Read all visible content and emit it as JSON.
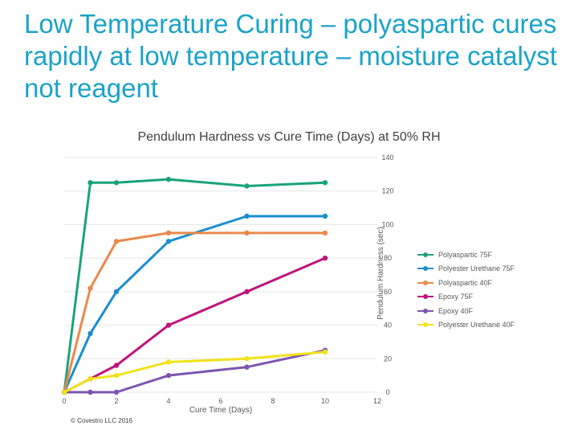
{
  "slide": {
    "title": "Low Temperature Curing – polyaspartic cures rapidly at low temperature – moisture catalyst not reagent",
    "copyright": "© Covestro LLC 2016"
  },
  "chart_data": {
    "type": "line",
    "title": "Pendulum Hardness vs Cure Time (Days) at 50% RH",
    "xlabel": "Cure Time (Days)",
    "ylabel": "Pendulum Hardness (sec)",
    "xlim": [
      0,
      12
    ],
    "ylim": [
      0,
      140
    ],
    "xticks": [
      0,
      2,
      4,
      6,
      8,
      10,
      12
    ],
    "yticks": [
      0,
      20,
      40,
      60,
      80,
      100,
      120,
      140
    ],
    "grid": true,
    "legend_position": "right",
    "series": [
      {
        "name": "Polyaspartic 75F",
        "color": "#1aa37a",
        "points": [
          [
            0,
            0
          ],
          [
            1,
            125
          ],
          [
            2,
            125
          ],
          [
            4,
            127
          ],
          [
            7,
            123
          ],
          [
            10,
            125
          ]
        ]
      },
      {
        "name": "Polyester Urethane 75F",
        "color": "#1a8fd0",
        "points": [
          [
            0,
            0
          ],
          [
            1,
            35
          ],
          [
            2,
            60
          ],
          [
            4,
            90
          ],
          [
            7,
            105
          ],
          [
            10,
            105
          ]
        ]
      },
      {
        "name": "Polyaspartic 40F",
        "color": "#e98a4c",
        "points": [
          [
            0,
            0
          ],
          [
            1,
            62
          ],
          [
            2,
            90
          ],
          [
            4,
            95
          ],
          [
            7,
            95
          ],
          [
            10,
            95
          ]
        ]
      },
      {
        "name": "Epoxy 75F",
        "color": "#c0137d",
        "points": [
          [
            0,
            0
          ],
          [
            1,
            8
          ],
          [
            2,
            16
          ],
          [
            4,
            40
          ],
          [
            7,
            60
          ],
          [
            10,
            80
          ]
        ]
      },
      {
        "name": "Epoxy 40F",
        "color": "#7e55b0",
        "points": [
          [
            0,
            0
          ],
          [
            1,
            0
          ],
          [
            2,
            0
          ],
          [
            4,
            10
          ],
          [
            7,
            15
          ],
          [
            10,
            25
          ]
        ]
      },
      {
        "name": "Polyester Urethane 40F",
        "color": "#f2e21c",
        "points": [
          [
            0,
            0
          ],
          [
            1,
            8
          ],
          [
            2,
            10
          ],
          [
            4,
            18
          ],
          [
            7,
            20
          ],
          [
            10,
            24
          ]
        ]
      }
    ]
  }
}
